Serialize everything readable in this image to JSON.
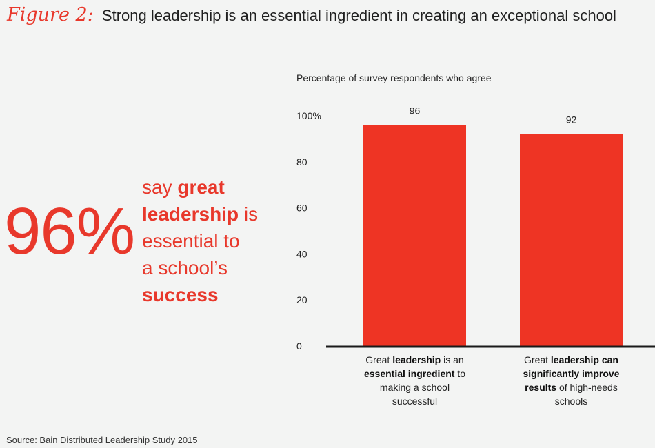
{
  "figure_label": "Figure 2:",
  "figure_title": "Strong leadership is an essential ingredient in creating an exceptional school",
  "callout": {
    "big_stat": "96%",
    "lines": [
      [
        {
          "t": "say ",
          "b": false
        },
        {
          "t": "great",
          "b": true
        }
      ],
      [
        {
          "t": "leadership",
          "b": true
        },
        {
          "t": " is",
          "b": false
        }
      ],
      [
        {
          "t": "essential to",
          "b": false
        }
      ],
      [
        {
          "t": "a school’s",
          "b": false
        }
      ],
      [
        {
          "t": "success",
          "b": true
        }
      ]
    ]
  },
  "source": "Source: Bain Distributed Leadership Study 2015",
  "colors": {
    "bar": "#ee3424",
    "accent": "#e8382b",
    "axis": "#1a1a1a"
  },
  "chart_data": {
    "type": "bar",
    "title": "Percentage of survey respondents who agree",
    "ylim": [
      0,
      100
    ],
    "yticks": [
      "0",
      "20",
      "40",
      "60",
      "80",
      "100%"
    ],
    "values": [
      96,
      92
    ],
    "data_labels": [
      "96",
      "92"
    ],
    "categories": [
      [
        [
          {
            "t": "Great ",
            "b": false
          },
          {
            "t": "leadership",
            "b": true
          },
          {
            "t": " is an",
            "b": false
          }
        ],
        [
          {
            "t": "essential ingredient",
            "b": true
          },
          {
            "t": " to",
            "b": false
          }
        ],
        [
          {
            "t": "making a school",
            "b": false
          }
        ],
        [
          {
            "t": "successful",
            "b": false
          }
        ]
      ],
      [
        [
          {
            "t": "Great ",
            "b": false
          },
          {
            "t": "leadership can",
            "b": true
          }
        ],
        [
          {
            "t": "significantly improve",
            "b": true
          }
        ],
        [
          {
            "t": "results",
            "b": true
          },
          {
            "t": " of high-needs",
            "b": false
          }
        ],
        [
          {
            "t": "schools",
            "b": false
          }
        ]
      ]
    ],
    "grid": false,
    "legend": "none"
  }
}
